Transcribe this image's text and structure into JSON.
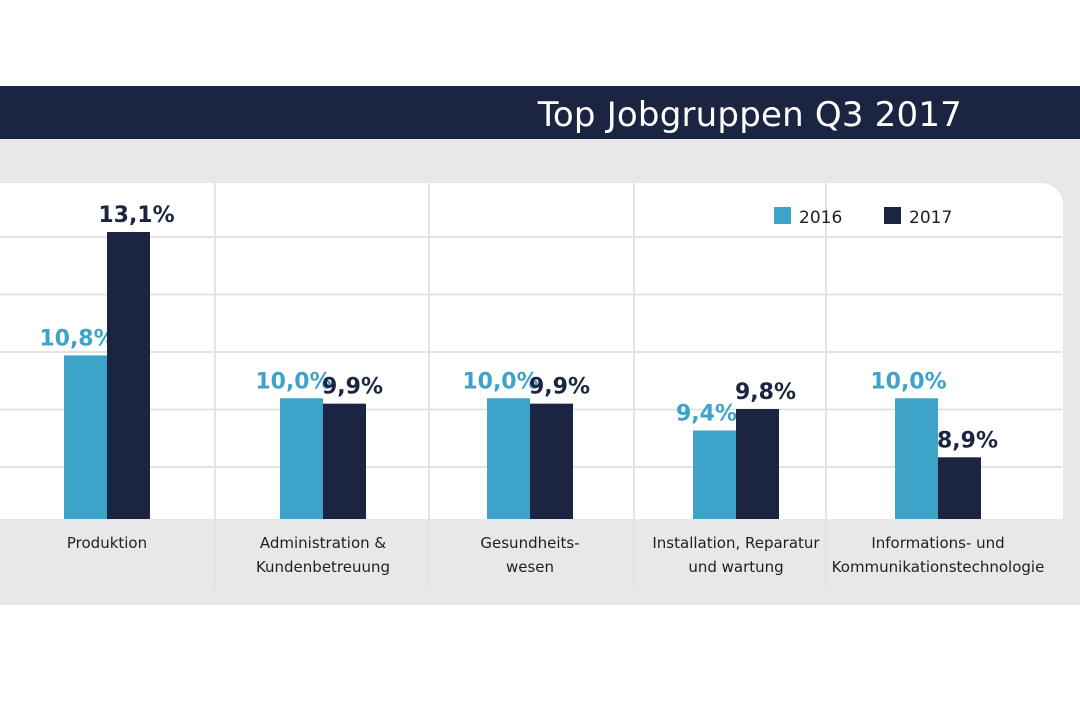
{
  "header": {
    "title": "Top Jobgruppen Q3 2017"
  },
  "colors": {
    "s2016": "#3da3c8",
    "s2017": "#1b2440",
    "header": "#1b2440",
    "band": "#e8e8ea"
  },
  "chart_data": {
    "type": "bar",
    "title": "Top Jobgruppen Q3 2017",
    "categories": [
      [
        "Produktion"
      ],
      [
        "Administration &",
        "Kundenbetreuung"
      ],
      [
        "Gesundheits-",
        "wesen"
      ],
      [
        "Installation, Reparatur",
        "und wartung"
      ],
      [
        "Informations- und",
        "Kommunikationstechnologie"
      ]
    ],
    "series": [
      {
        "name": "2016",
        "values": [
          10.8,
          10.0,
          10.0,
          9.4,
          10.0
        ],
        "labels": [
          "10,8%",
          "10,0%",
          "10,0%",
          "9,4%",
          "10,0%"
        ]
      },
      {
        "name": "2017",
        "values": [
          13.1,
          9.9,
          9.9,
          9.8,
          8.9
        ],
        "labels": [
          "13,1%",
          "9,9%",
          "9,9%",
          "9,8%",
          "8,9%"
        ]
      }
    ],
    "legend": "top-right",
    "grid": true
  }
}
